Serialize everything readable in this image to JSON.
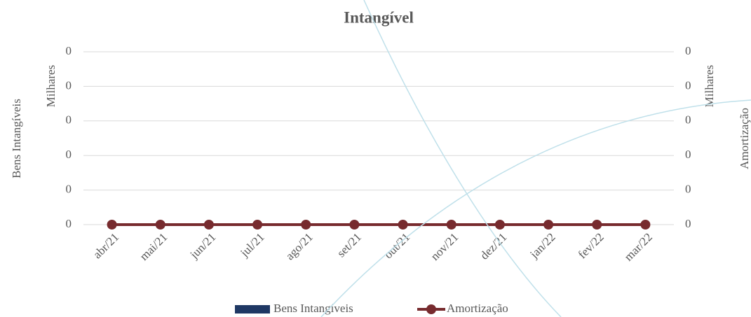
{
  "chart_data": {
    "type": "bar",
    "title": "Intangível",
    "categories": [
      "abr/21",
      "mai/21",
      "jun/21",
      "jul/21",
      "ago/21",
      "set/21",
      "out/21",
      "nov/21",
      "dez/21",
      "jan/22",
      "fev/22",
      "mar/22"
    ],
    "series": [
      {
        "name": "Bens Intangíveis",
        "type": "bar",
        "color": "#1f3864",
        "values": [
          0,
          0,
          0,
          0,
          0,
          0,
          0,
          0,
          0,
          0,
          0,
          0
        ]
      },
      {
        "name": "Amortização",
        "type": "line",
        "axis": "y2",
        "color": "#772b2e",
        "values": [
          0,
          0,
          0,
          0,
          0,
          0,
          0,
          0,
          0,
          0,
          0,
          0
        ]
      }
    ],
    "y_label": "Bens Intangíveis",
    "y_unit": "Milhares",
    "y2_label": "Amortização",
    "y2_unit": "Milhares",
    "ylim": [
      0,
      1
    ],
    "yticks": [
      {
        "value": 0,
        "label": "0"
      },
      {
        "value": 0.2,
        "label": "0"
      },
      {
        "value": 0.4,
        "label": "0"
      },
      {
        "value": 0.6,
        "label": "0"
      },
      {
        "value": 0.8,
        "label": "0"
      },
      {
        "value": 1,
        "label": "0"
      }
    ],
    "y2lim": [
      0,
      1
    ],
    "y2ticks": [
      {
        "value": 0,
        "label": "0"
      },
      {
        "value": 0.2,
        "label": "0"
      },
      {
        "value": 0.4,
        "label": "0"
      },
      {
        "value": 0.6,
        "label": "0"
      },
      {
        "value": 0.8,
        "label": "0"
      },
      {
        "value": 1,
        "label": "0"
      }
    ],
    "grid": true,
    "legend": "bottom"
  }
}
